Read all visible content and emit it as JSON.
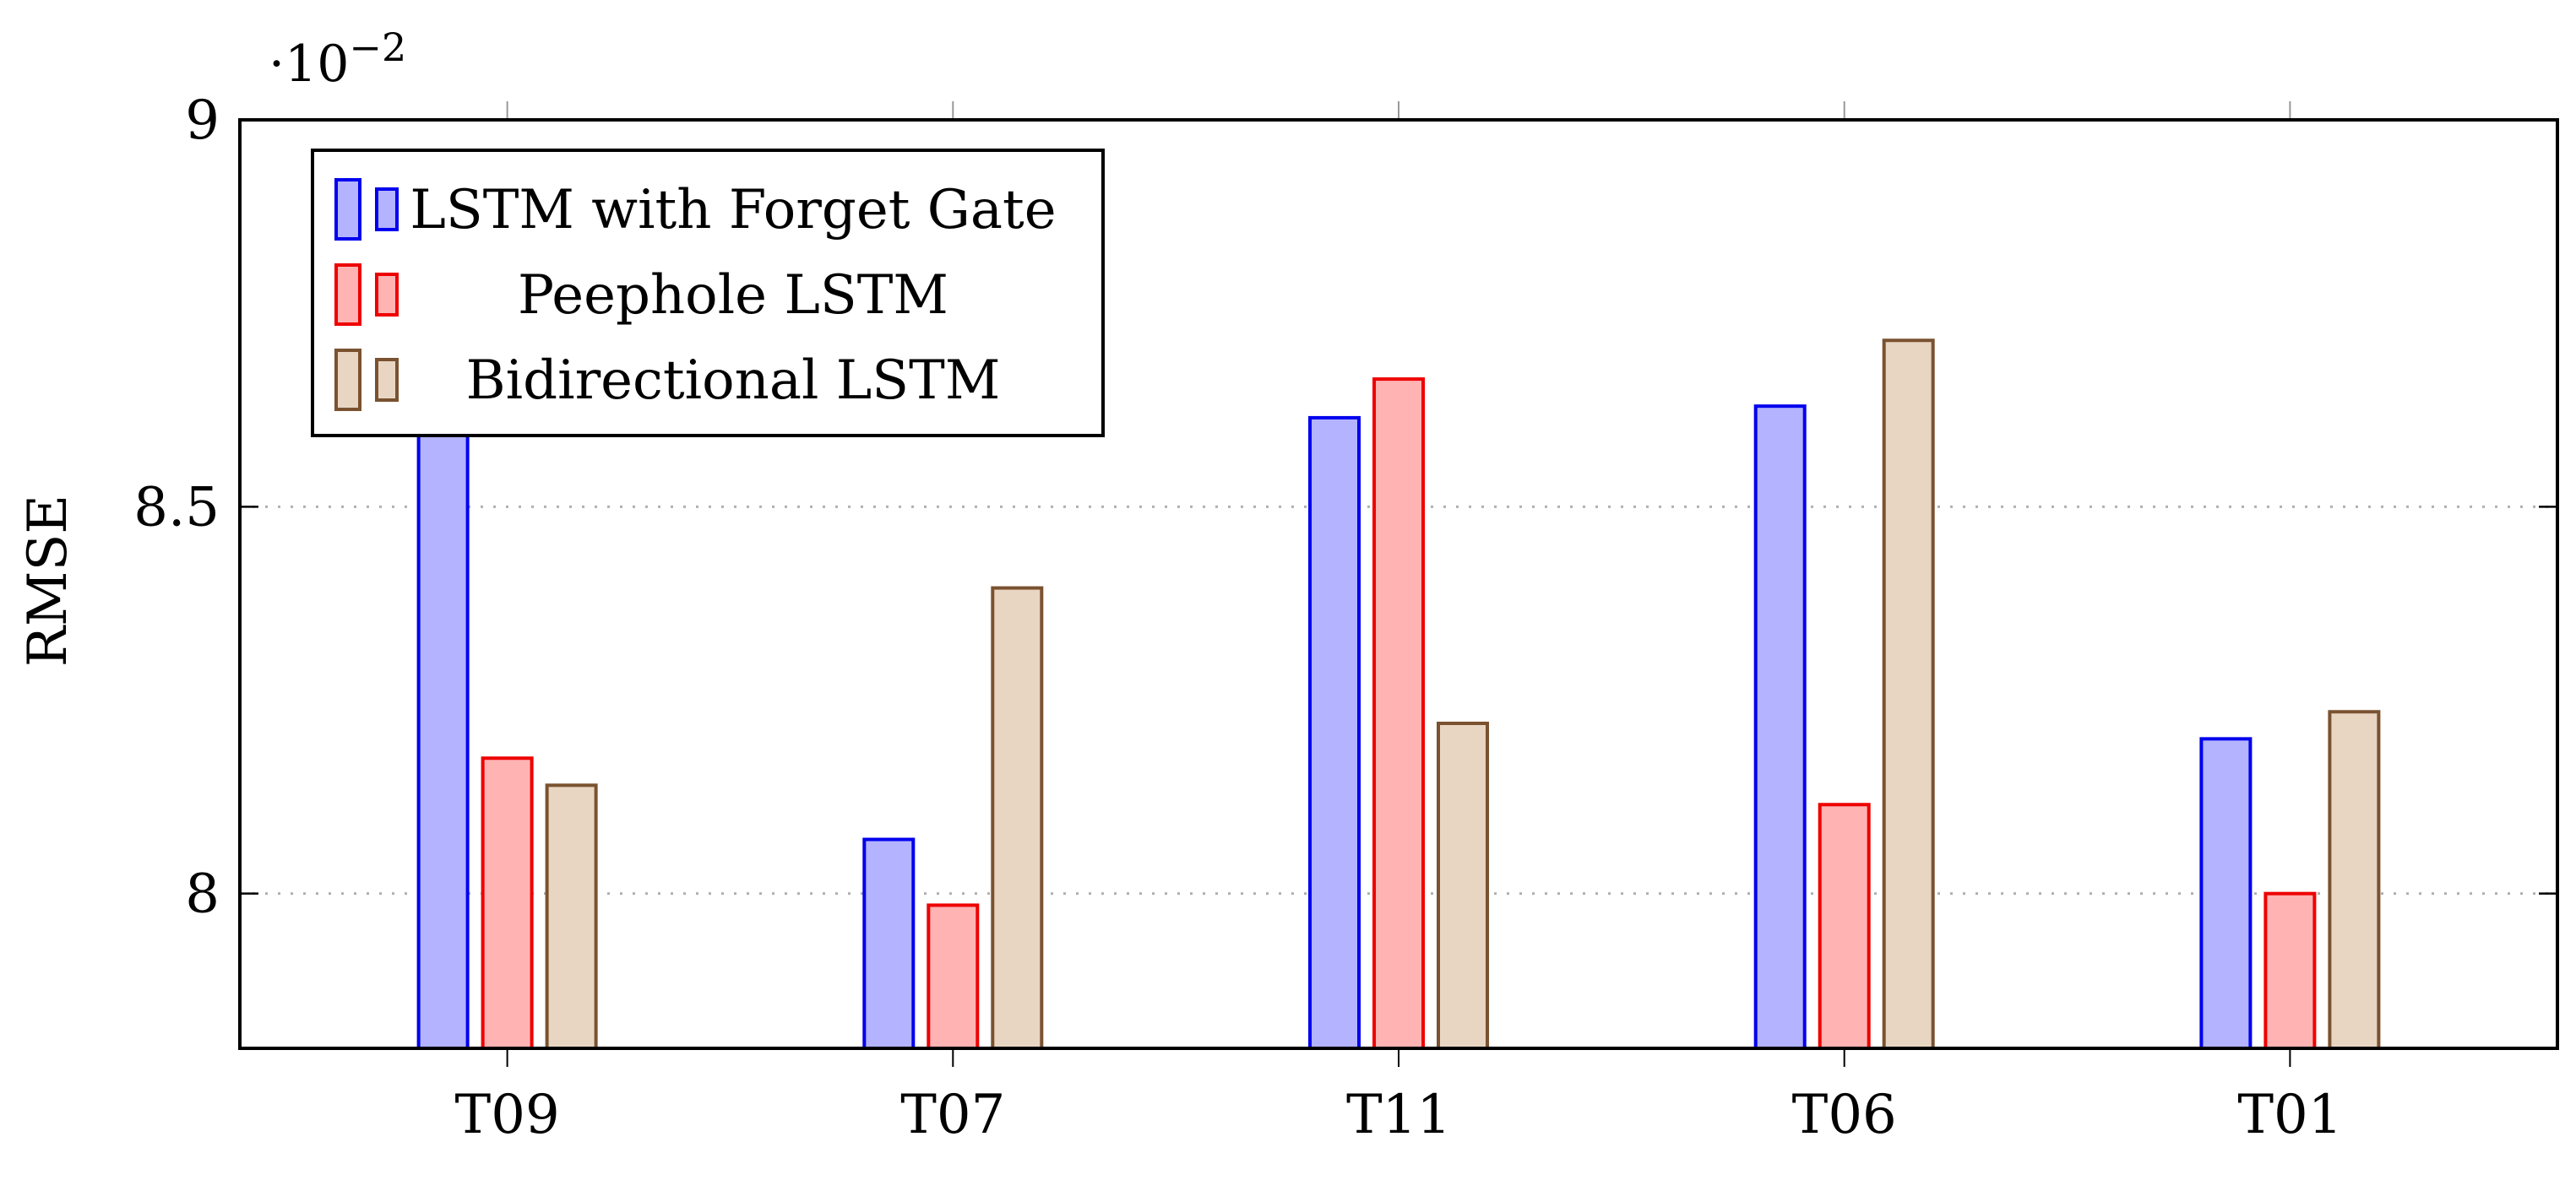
{
  "chart_data": {
    "type": "bar",
    "title": "",
    "xlabel": "",
    "ylabel": "RMSE",
    "scale_prefix": "·10",
    "scale_exponent": "−2",
    "ylim": [
      7.8,
      9.0
    ],
    "yticks": [
      {
        "value": 8.0,
        "label": "8"
      },
      {
        "value": 8.5,
        "label": "8.5"
      },
      {
        "value": 9.0,
        "label": "9"
      }
    ],
    "grid": "y-dotted",
    "legend_position": "top-left",
    "categories": [
      "T09",
      "T07",
      "T11",
      "T06",
      "T01"
    ],
    "series": [
      {
        "name": "LSTM with Forget Gate",
        "fill": "#b3b3ff",
        "stroke": "#0000ee",
        "values": [
          8.6,
          8.07,
          8.615,
          8.63,
          8.2
        ]
      },
      {
        "name": "Peephole LSTM",
        "fill": "#ffb3b3",
        "stroke": "#ee0000",
        "values": [
          8.175,
          7.985,
          8.665,
          8.115,
          8.0
        ]
      },
      {
        "name": "Bidirectional LSTM",
        "fill": "#e8d6c2",
        "stroke": "#7a5230",
        "values": [
          8.14,
          8.395,
          8.22,
          8.715,
          8.235
        ]
      }
    ]
  }
}
